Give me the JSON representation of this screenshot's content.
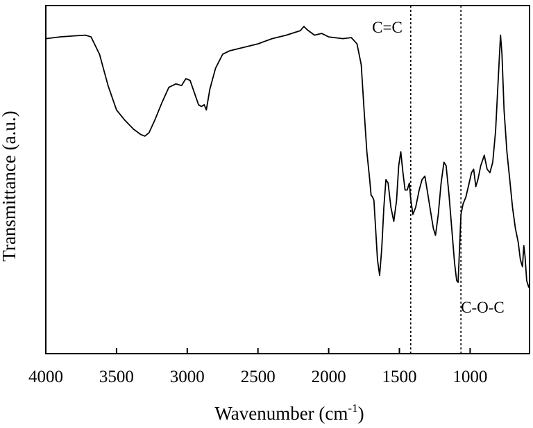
{
  "chart_data": {
    "type": "line",
    "xlabel": "Wavenumber (cm",
    "xlabel_sup": "-1",
    "xlabel_end": ")",
    "ylabel": "Transmittance (a.u.)",
    "xlim": [
      4000,
      580
    ],
    "x_reversed": true,
    "ylim": [
      0,
      100
    ],
    "x_ticks": [
      4000,
      3500,
      3000,
      2500,
      2000,
      1500,
      1000
    ],
    "x_tick_labels": [
      "4000",
      "3500",
      "3000",
      "2500",
      "2000",
      "1500",
      "1000"
    ],
    "grid": false,
    "legend": "none",
    "line_color": "#000000",
    "reference_lines": [
      {
        "x": 1420,
        "label": "C=C"
      },
      {
        "x": 1065,
        "label": "C-O-C"
      }
    ],
    "series": [
      {
        "points": [
          [
            4000,
            90.5
          ],
          [
            3900,
            91.0
          ],
          [
            3800,
            91.3
          ],
          [
            3720,
            91.5
          ],
          [
            3680,
            91.0
          ],
          [
            3620,
            86.0
          ],
          [
            3560,
            77.0
          ],
          [
            3500,
            70.0
          ],
          [
            3440,
            67.0
          ],
          [
            3380,
            64.5
          ],
          [
            3330,
            63.0
          ],
          [
            3300,
            62.5
          ],
          [
            3270,
            63.5
          ],
          [
            3230,
            67.0
          ],
          [
            3180,
            72.0
          ],
          [
            3130,
            76.5
          ],
          [
            3080,
            77.5
          ],
          [
            3040,
            77.0
          ],
          [
            3010,
            79.0
          ],
          [
            2980,
            78.5
          ],
          [
            2950,
            75.0
          ],
          [
            2920,
            71.5
          ],
          [
            2900,
            71.0
          ],
          [
            2880,
            71.5
          ],
          [
            2865,
            70.0
          ],
          [
            2840,
            76.0
          ],
          [
            2800,
            82.0
          ],
          [
            2750,
            86.0
          ],
          [
            2700,
            87.0
          ],
          [
            2600,
            88.0
          ],
          [
            2500,
            89.0
          ],
          [
            2400,
            90.5
          ],
          [
            2300,
            91.5
          ],
          [
            2200,
            92.8
          ],
          [
            2175,
            94.0
          ],
          [
            2150,
            93.0
          ],
          [
            2100,
            91.5
          ],
          [
            2050,
            92.0
          ],
          [
            2000,
            91.0
          ],
          [
            1900,
            90.5
          ],
          [
            1840,
            90.8
          ],
          [
            1800,
            89.0
          ],
          [
            1770,
            83.0
          ],
          [
            1750,
            70.0
          ],
          [
            1730,
            58.0
          ],
          [
            1710,
            50.0
          ],
          [
            1700,
            45.5
          ],
          [
            1690,
            45.0
          ],
          [
            1680,
            44.0
          ],
          [
            1670,
            37.0
          ],
          [
            1655,
            27.0
          ],
          [
            1640,
            22.5
          ],
          [
            1625,
            30.0
          ],
          [
            1610,
            42.0
          ],
          [
            1595,
            50.0
          ],
          [
            1580,
            49.0
          ],
          [
            1560,
            42.0
          ],
          [
            1540,
            38.0
          ],
          [
            1520,
            44.0
          ],
          [
            1505,
            54.0
          ],
          [
            1490,
            58.0
          ],
          [
            1475,
            52.0
          ],
          [
            1460,
            47.0
          ],
          [
            1445,
            47.0
          ],
          [
            1430,
            49.0
          ],
          [
            1420,
            44.5
          ],
          [
            1405,
            40.0
          ],
          [
            1385,
            42.0
          ],
          [
            1360,
            47.0
          ],
          [
            1340,
            50.0
          ],
          [
            1320,
            51.0
          ],
          [
            1300,
            46.0
          ],
          [
            1280,
            41.0
          ],
          [
            1260,
            36.0
          ],
          [
            1245,
            34.0
          ],
          [
            1225,
            40.0
          ],
          [
            1205,
            49.0
          ],
          [
            1185,
            55.0
          ],
          [
            1170,
            54.0
          ],
          [
            1150,
            46.0
          ],
          [
            1130,
            36.0
          ],
          [
            1110,
            26.0
          ],
          [
            1095,
            21.0
          ],
          [
            1085,
            20.5
          ],
          [
            1075,
            30.0
          ],
          [
            1065,
            40.0
          ],
          [
            1050,
            43.0
          ],
          [
            1030,
            45.0
          ],
          [
            1010,
            48.5
          ],
          [
            990,
            52.0
          ],
          [
            975,
            53.0
          ],
          [
            960,
            48.0
          ],
          [
            945,
            50.0
          ],
          [
            925,
            54.0
          ],
          [
            900,
            57.0
          ],
          [
            880,
            53.0
          ],
          [
            860,
            52.0
          ],
          [
            840,
            55.0
          ],
          [
            820,
            64.0
          ],
          [
            800,
            80.0
          ],
          [
            785,
            91.5
          ],
          [
            775,
            86.0
          ],
          [
            760,
            70.0
          ],
          [
            740,
            58.0
          ],
          [
            720,
            50.0
          ],
          [
            700,
            42.0
          ],
          [
            680,
            36.0
          ],
          [
            660,
            32.0
          ],
          [
            645,
            27.0
          ],
          [
            630,
            25.0
          ],
          [
            620,
            31.0
          ],
          [
            612,
            28.0
          ],
          [
            600,
            21.0
          ],
          [
            585,
            19.0
          ]
        ]
      }
    ]
  }
}
